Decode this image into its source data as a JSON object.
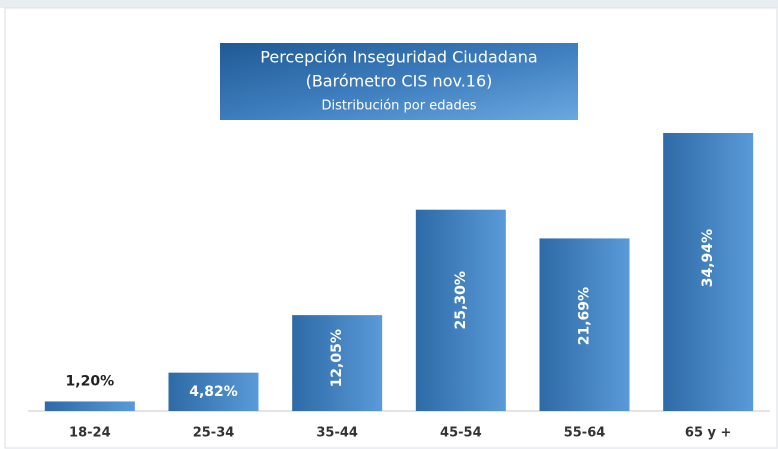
{
  "chart_data": {
    "type": "bar",
    "title": "Percepción Inseguridad Ciudadana",
    "subtitle": "(Barómetro CIS nov.16)",
    "caption": "Distribución por edades",
    "categories": [
      "18-24",
      "25-34",
      "35-44",
      "45-54",
      "55-64",
      "65 y +"
    ],
    "values": [
      1.2,
      4.82,
      12.05,
      25.3,
      21.69,
      34.94
    ],
    "value_labels": [
      "1,20%",
      "4,82%",
      "12,05%",
      "25,30%",
      "21,69%",
      "34,94%"
    ],
    "color": "#3a7fc0"
  }
}
